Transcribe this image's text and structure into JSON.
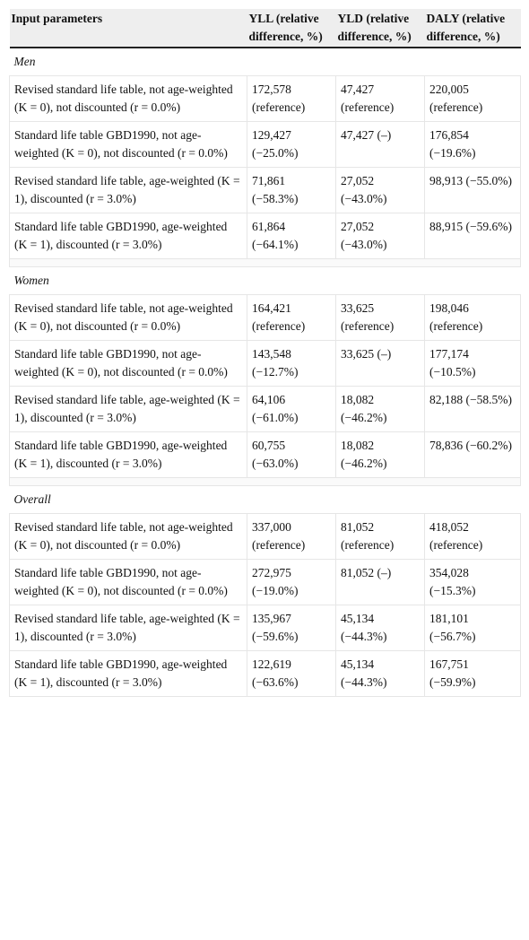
{
  "table": {
    "header": [
      "Input parameters",
      "YLL (relative difference, %)",
      "YLD (relative difference, %)",
      "DALY (relative difference, %)"
    ],
    "sections": [
      {
        "title": "Men",
        "rows": [
          [
            "Revised standard life table, not age-weighted (K = 0), not discounted (r = 0.0%)",
            "172,578 (reference)",
            "47,427 (reference)",
            "220,005 (reference)"
          ],
          [
            "Standard life table GBD1990, not age-weighted (K = 0), not discounted (r = 0.0%)",
            "129,427 (−25.0%)",
            "47,427 (–)",
            "176,854 (−19.6%)"
          ],
          [
            "Revised standard life table, age-weighted (K = 1), discounted (r = 3.0%)",
            "71,861 (−58.3%)",
            "27,052 (−43.0%)",
            "98,913 (−55.0%)"
          ],
          [
            "Standard life table GBD1990, age-weighted (K = 1), discounted (r = 3.0%)",
            "61,864 (−64.1%)",
            "27,052 (−43.0%)",
            "88,915 (−59.6%)"
          ]
        ]
      },
      {
        "title": "Women",
        "rows": [
          [
            "Revised standard life table, not age-weighted (K = 0), not discounted (r = 0.0%)",
            "164,421 (reference)",
            "33,625 (reference)",
            "198,046 (reference)"
          ],
          [
            "Standard life table GBD1990, not age-weighted (K = 0), not discounted (r = 0.0%)",
            "143,548 (−12.7%)",
            "33,625 (–)",
            "177,174 (−10.5%)"
          ],
          [
            "Revised standard life table, age-weighted (K = 1), discounted (r = 3.0%)",
            "64,106 (−61.0%)",
            "18,082 (−46.2%)",
            "82,188 (−58.5%)"
          ],
          [
            "Standard life table GBD1990, age-weighted (K = 1), discounted (r = 3.0%)",
            "60,755 (−63.0%)",
            "18,082 (−46.2%)",
            "78,836 (−60.2%)"
          ]
        ]
      },
      {
        "title": "Overall",
        "rows": [
          [
            "Revised standard life table, not age-weighted (K = 0), not discounted (r = 0.0%)",
            "337,000 (reference)",
            "81,052 (reference)",
            "418,052 (reference)"
          ],
          [
            "Standard life table GBD1990, not age-weighted (K = 0), not discounted (r = 0.0%)",
            "272,975 (−19.0%)",
            "81,052 (–)",
            "354,028 (−15.3%)"
          ],
          [
            "Revised standard life table, age-weighted (K = 1), discounted (r = 3.0%)",
            "135,967 (−59.6%)",
            "45,134 (−44.3%)",
            "181,101 (−56.7%)"
          ],
          [
            "Standard life table GBD1990, age-weighted (K = 1), discounted (r = 3.0%)",
            "122,619 (−63.6%)",
            "45,134 (−44.3%)",
            "167,751 (−59.9%)"
          ]
        ]
      }
    ]
  }
}
